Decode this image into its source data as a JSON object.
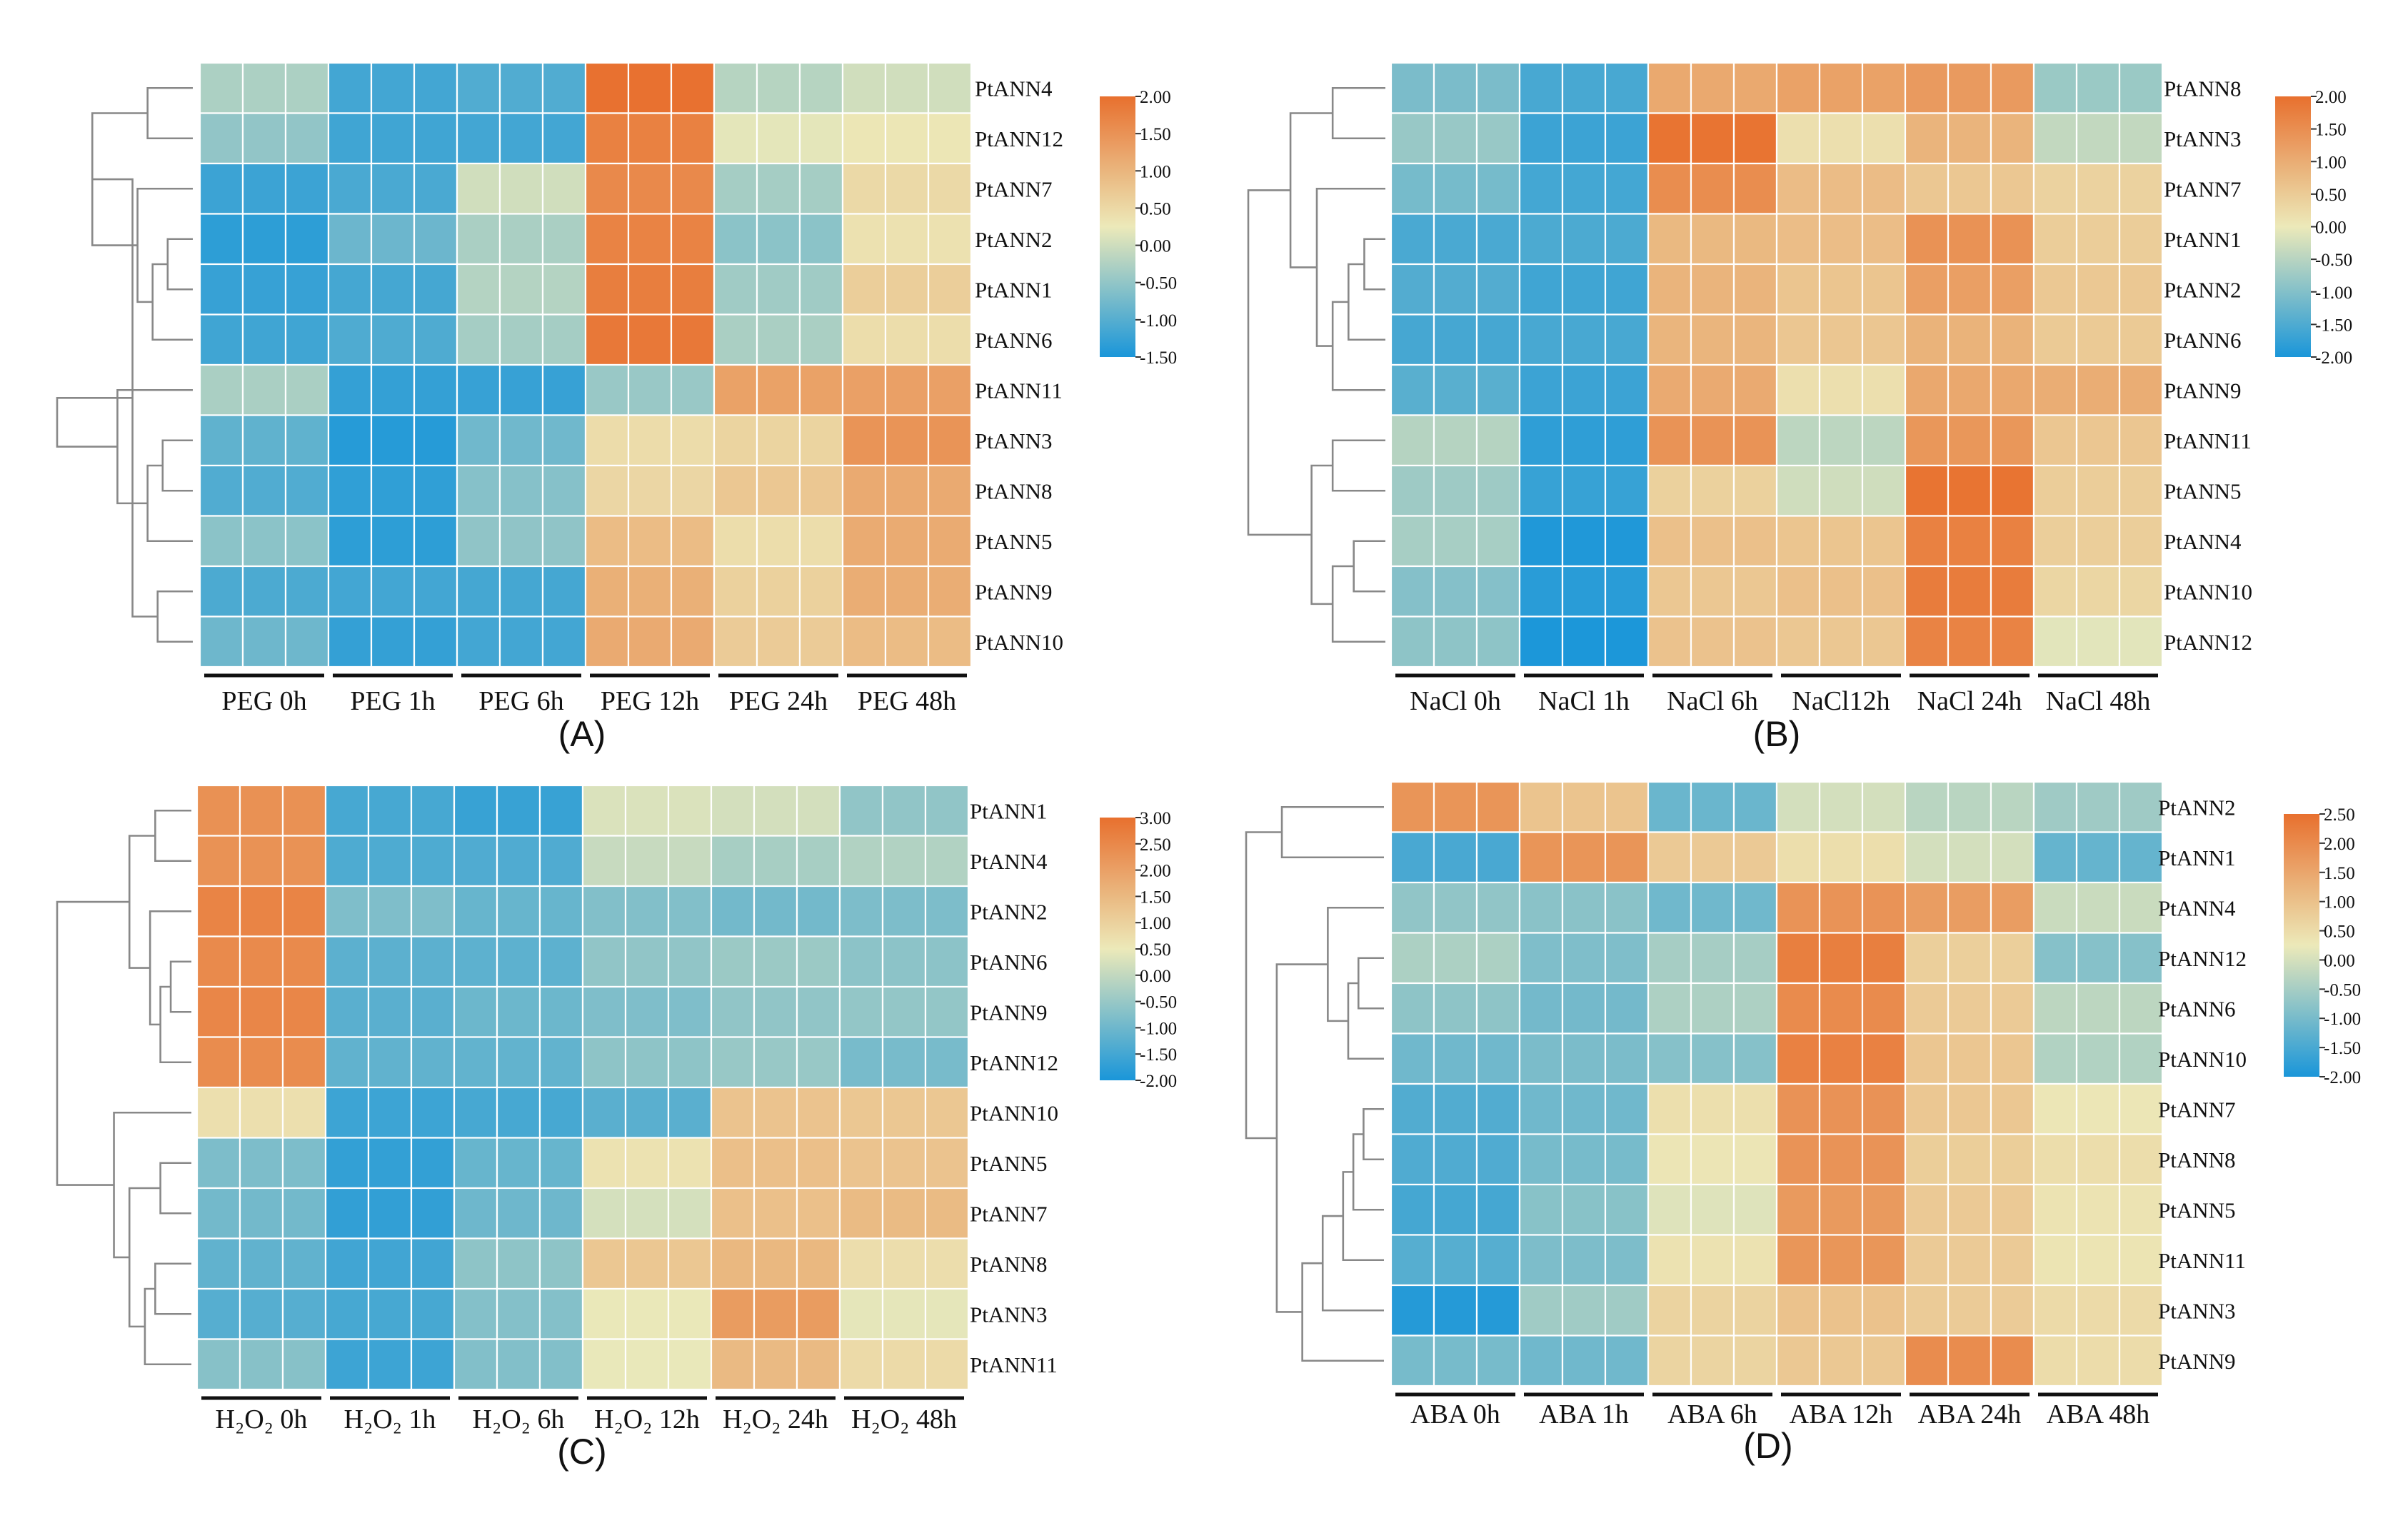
{
  "figure": {
    "description_free": true
  },
  "chart_data": [
    {
      "type": "heatmap",
      "panel_label": "(A)",
      "rows": [
        "PtANN4",
        "PtANN12",
        "PtANN7",
        "PtANN2",
        "PtANN1",
        "PtANN6",
        "PtANN11",
        "PtANN3",
        "PtANN8",
        "PtANN5",
        "PtANN9",
        "PtANN10"
      ],
      "columns": [
        "PEG 0h",
        "PEG 1h",
        "PEG 6h",
        "PEG 12h",
        "PEG 24h",
        "PEG 48h"
      ],
      "replicates_per_column": 3,
      "color_scale": {
        "min": -1.5,
        "max": 2.0,
        "ticks": [
          "2.00",
          "1.50",
          "1.00",
          "0.50",
          "0.00",
          "-0.50",
          "-1.00",
          "-1.50"
        ],
        "low_color": "#1a96d9",
        "mid_color": "#ece9b9",
        "high_color": "#e8702e"
      },
      "values": [
        [
          -0.2,
          -1.2,
          -1.0,
          1.9,
          -0.2,
          0.1
        ],
        [
          -0.5,
          -1.1,
          -1.2,
          1.8,
          0.1,
          0.3
        ],
        [
          -1.3,
          -1.1,
          0.1,
          1.6,
          -0.3,
          0.4
        ],
        [
          -1.3,
          -0.9,
          -0.3,
          1.8,
          -0.6,
          0.4
        ],
        [
          -1.3,
          -1.1,
          -0.3,
          1.8,
          -0.3,
          0.6
        ],
        [
          -1.1,
          -1.1,
          -0.3,
          1.8,
          -0.3,
          0.5
        ],
        [
          -0.3,
          -1.2,
          -1.3,
          -0.4,
          1.2,
          1.3
        ],
        [
          -1.0,
          -1.4,
          -0.7,
          0.4,
          0.6,
          1.4
        ],
        [
          -1.0,
          -1.4,
          -0.6,
          0.6,
          0.7,
          1.2
        ],
        [
          -0.6,
          -1.3,
          -0.6,
          0.9,
          0.5,
          1.1
        ],
        [
          -1.0,
          -1.2,
          -1.1,
          1.0,
          0.6,
          1.2
        ],
        [
          -0.8,
          -1.2,
          -1.2,
          1.2,
          0.6,
          0.9
        ]
      ],
      "row_dendrogram": [
        [
          0,
          1,
          0.45
        ],
        [
          3,
          4,
          0.25
        ],
        [
          13,
          5,
          0.4
        ],
        [
          2,
          14,
          0.55
        ],
        [
          12,
          15,
          1.0
        ],
        [
          7,
          8,
          0.3
        ],
        [
          10,
          11,
          0.35
        ],
        [
          9,
          17,
          0.45
        ],
        [
          16,
          18,
          0.6
        ],
        [
          6,
          19,
          0.75
        ],
        [
          20,
          21,
          1.35
        ]
      ]
    },
    {
      "type": "heatmap",
      "panel_label": "(B)",
      "rows": [
        "PtANN8",
        "PtANN3",
        "PtANN7",
        "PtANN1",
        "PtANN2",
        "PtANN6",
        "PtANN9",
        "PtANN11",
        "PtANN5",
        "PtANN4",
        "PtANN10",
        "PtANN12"
      ],
      "columns": [
        "NaCl 0h",
        "NaCl 1h",
        "NaCl 6h",
        "NaCl12h",
        "NaCl 24h",
        "NaCl 48h"
      ],
      "replicates_per_column": 3,
      "color_scale": {
        "min": -2.0,
        "max": 2.0,
        "ticks": [
          "2.00",
          "1.50",
          "1.00",
          "0.50",
          "0.00",
          "-0.50",
          "-1.00",
          "-1.50",
          "-2.00"
        ],
        "low_color": "#1a96d9",
        "mid_color": "#ece9b9",
        "high_color": "#e8702e"
      },
      "values": [
        [
          -1.0,
          -1.6,
          1.1,
          1.1,
          1.3,
          -0.7
        ],
        [
          -0.8,
          -1.6,
          1.9,
          0.2,
          0.8,
          -0.4
        ],
        [
          -1.2,
          -1.6,
          1.6,
          0.7,
          0.6,
          0.3
        ],
        [
          -1.5,
          -1.6,
          0.8,
          0.8,
          1.4,
          0.5
        ],
        [
          -1.5,
          -1.6,
          0.8,
          0.6,
          1.3,
          0.5
        ],
        [
          -1.5,
          -1.6,
          0.9,
          0.5,
          0.9,
          0.6
        ],
        [
          -1.4,
          -1.6,
          1.0,
          0.2,
          1.0,
          1.0
        ],
        [
          -0.6,
          -1.8,
          1.5,
          -0.5,
          1.4,
          0.5
        ],
        [
          -0.7,
          -1.8,
          0.4,
          -0.2,
          1.9,
          0.5
        ],
        [
          -0.7,
          -1.9,
          0.6,
          0.6,
          1.8,
          0.4
        ],
        [
          -0.9,
          -1.9,
          0.6,
          0.6,
          1.8,
          0.4
        ],
        [
          -0.9,
          -1.9,
          0.6,
          0.6,
          1.6,
          -0.1
        ]
      ],
      "row_dendrogram": [
        [
          0,
          1,
          0.5
        ],
        [
          3,
          4,
          0.2
        ],
        [
          13,
          5,
          0.35
        ],
        [
          14,
          6,
          0.5
        ],
        [
          2,
          15,
          0.65
        ],
        [
          12,
          16,
          0.9
        ],
        [
          7,
          8,
          0.5
        ],
        [
          9,
          10,
          0.3
        ],
        [
          19,
          11,
          0.5
        ],
        [
          18,
          20,
          0.7
        ],
        [
          17,
          21,
          1.3
        ]
      ]
    },
    {
      "type": "heatmap",
      "panel_label": "(C)",
      "rows": [
        "PtANN1",
        "PtANN4",
        "PtANN2",
        "PtANN6",
        "PtANN9",
        "PtANN12",
        "PtANN10",
        "PtANN5",
        "PtANN7",
        "PtANN8",
        "PtANN3",
        "PtANN11"
      ],
      "columns": [
        "H₂O₂ 0h",
        "H₂O₂ 1h",
        "H₂O₂ 6h",
        "H₂O₂ 12h",
        "H₂O₂ 24h",
        "H₂O₂ 48h"
      ],
      "replicates_per_column": 3,
      "color_scale": {
        "min": -2.0,
        "max": 3.0,
        "ticks": [
          "3.00",
          "2.50",
          "2.00",
          "1.50",
          "1.00",
          "0.50",
          "0.00",
          "-0.50",
          "-1.00",
          "-1.50",
          "-2.00"
        ],
        "low_color": "#1a96d9",
        "mid_color": "#ece9b9",
        "high_color": "#e8702e"
      },
      "values": [
        [
          2.4,
          -1.5,
          -1.6,
          0.2,
          0.2,
          -0.5
        ],
        [
          2.3,
          -1.3,
          -1.4,
          0.1,
          -0.4,
          -0.2
        ],
        [
          2.5,
          -0.8,
          -1.0,
          -0.8,
          -0.9,
          -0.9
        ],
        [
          2.5,
          -1.3,
          -1.2,
          -0.5,
          -0.5,
          -0.6
        ],
        [
          2.5,
          -1.2,
          -1.1,
          -0.8,
          -0.5,
          -0.6
        ],
        [
          2.5,
          -1.2,
          -1.1,
          -0.7,
          -0.5,
          -0.8
        ],
        [
          0.7,
          -1.5,
          -1.5,
          -1.2,
          1.2,
          1.2
        ],
        [
          -0.9,
          -1.7,
          -1.0,
          0.6,
          1.4,
          1.2
        ],
        [
          -0.9,
          -1.8,
          -1.0,
          0.3,
          1.3,
          1.5
        ],
        [
          -1.2,
          -1.5,
          -0.7,
          1.2,
          1.6,
          0.7
        ],
        [
          -1.2,
          -1.5,
          -0.7,
          0.4,
          2.1,
          0.5
        ],
        [
          -0.7,
          -1.5,
          -0.8,
          0.5,
          1.4,
          0.8
        ]
      ],
      "row_dendrogram": [
        [
          0,
          1,
          0.35
        ],
        [
          3,
          4,
          0.2
        ],
        [
          13,
          5,
          0.3
        ],
        [
          2,
          14,
          0.4
        ],
        [
          12,
          15,
          0.6
        ],
        [
          7,
          8,
          0.3
        ],
        [
          9,
          10,
          0.35
        ],
        [
          18,
          11,
          0.45
        ],
        [
          17,
          19,
          0.6
        ],
        [
          6,
          20,
          0.75
        ],
        [
          16,
          21,
          1.3
        ]
      ]
    },
    {
      "type": "heatmap",
      "panel_label": "(D)",
      "rows": [
        "PtANN2",
        "PtANN1",
        "PtANN4",
        "PtANN12",
        "PtANN6",
        "PtANN10",
        "PtANN7",
        "PtANN8",
        "PtANN5",
        "PtANN11",
        "PtANN3",
        "PtANN9"
      ],
      "columns": [
        "ABA 0h",
        "ABA 1h",
        "ABA 6h",
        "ABA 12h",
        "ABA 24h",
        "ABA 48h"
      ],
      "replicates_per_column": 3,
      "color_scale": {
        "min": -2.0,
        "max": 2.5,
        "ticks": [
          "2.50",
          "2.00",
          "1.50",
          "1.00",
          "0.50",
          "0.00",
          "-0.50",
          "-1.00",
          "-1.50",
          "-2.00"
        ],
        "low_color": "#1a96d9",
        "mid_color": "#ece9b9",
        "high_color": "#e8702e"
      },
      "values": [
        [
          1.9,
          0.9,
          -1.1,
          -0.1,
          -0.3,
          -0.5
        ],
        [
          -1.5,
          1.9,
          0.8,
          0.5,
          -0.1,
          -1.2
        ],
        [
          -0.8,
          -0.8,
          -1.0,
          1.8,
          1.7,
          -0.2
        ],
        [
          -0.4,
          -1.0,
          -0.5,
          2.3,
          0.7,
          -0.8
        ],
        [
          -0.8,
          -1.0,
          -0.5,
          2.0,
          0.9,
          -0.3
        ],
        [
          -1.0,
          -1.0,
          -0.8,
          2.1,
          0.9,
          -0.3
        ],
        [
          -1.4,
          -1.0,
          0.4,
          1.9,
          0.8,
          0.3
        ],
        [
          -1.5,
          -1.0,
          0.4,
          1.8,
          0.8,
          0.4
        ],
        [
          -1.5,
          -0.9,
          0.1,
          1.8,
          0.8,
          0.4
        ],
        [
          -1.4,
          -0.9,
          0.3,
          1.8,
          0.9,
          0.3
        ],
        [
          -1.8,
          -0.6,
          0.7,
          0.9,
          0.8,
          0.6
        ],
        [
          -1.0,
          -1.0,
          0.6,
          0.9,
          1.9,
          0.5
        ]
      ],
      "row_dendrogram": [
        [
          0,
          1,
          1.0
        ],
        [
          3,
          4,
          0.25
        ],
        [
          13,
          5,
          0.35
        ],
        [
          2,
          14,
          0.55
        ],
        [
          6,
          7,
          0.2
        ],
        [
          16,
          8,
          0.3
        ],
        [
          17,
          9,
          0.4
        ],
        [
          18,
          10,
          0.6
        ],
        [
          19,
          11,
          0.8
        ],
        [
          15,
          20,
          1.05
        ],
        [
          12,
          21,
          1.35
        ]
      ]
    }
  ]
}
